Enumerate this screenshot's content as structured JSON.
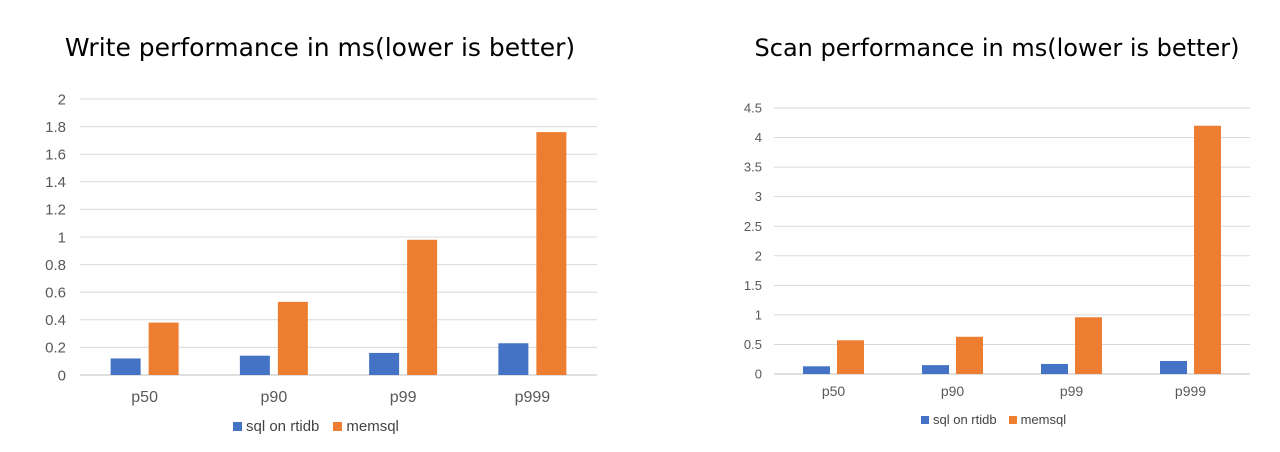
{
  "chart_data": [
    {
      "type": "bar",
      "title": "Write performance in ms(lower is better)",
      "categories": [
        "p50",
        "p90",
        "p99",
        "p999"
      ],
      "series": [
        {
          "name": "sql on rtidb",
          "color": "#4472C4",
          "values": [
            0.12,
            0.14,
            0.16,
            0.23
          ]
        },
        {
          "name": "memsql",
          "color": "#ED7D31",
          "values": [
            0.38,
            0.53,
            0.98,
            1.76
          ]
        }
      ],
      "ylim": [
        0,
        2
      ],
      "yticks": [
        "0",
        "0.2",
        "0.4",
        "0.6",
        "0.8",
        "1",
        "1.2",
        "1.4",
        "1.6",
        "1.8",
        "2"
      ],
      "grid": true,
      "legend": "bottom"
    },
    {
      "type": "bar",
      "title": "Scan performance in ms(lower is better)",
      "categories": [
        "p50",
        "p90",
        "p99",
        "p999"
      ],
      "series": [
        {
          "name": "sql on rtidb",
          "color": "#4472C4",
          "values": [
            0.13,
            0.15,
            0.17,
            0.22
          ]
        },
        {
          "name": "memsql",
          "color": "#ED7D31",
          "values": [
            0.57,
            0.63,
            0.96,
            4.2
          ]
        }
      ],
      "ylim": [
        0,
        4.5
      ],
      "yticks": [
        "0",
        "0.5",
        "1",
        "1.5",
        "2",
        "2.5",
        "3",
        "3.5",
        "4",
        "4.5"
      ],
      "grid": true,
      "legend": "bottom"
    }
  ]
}
